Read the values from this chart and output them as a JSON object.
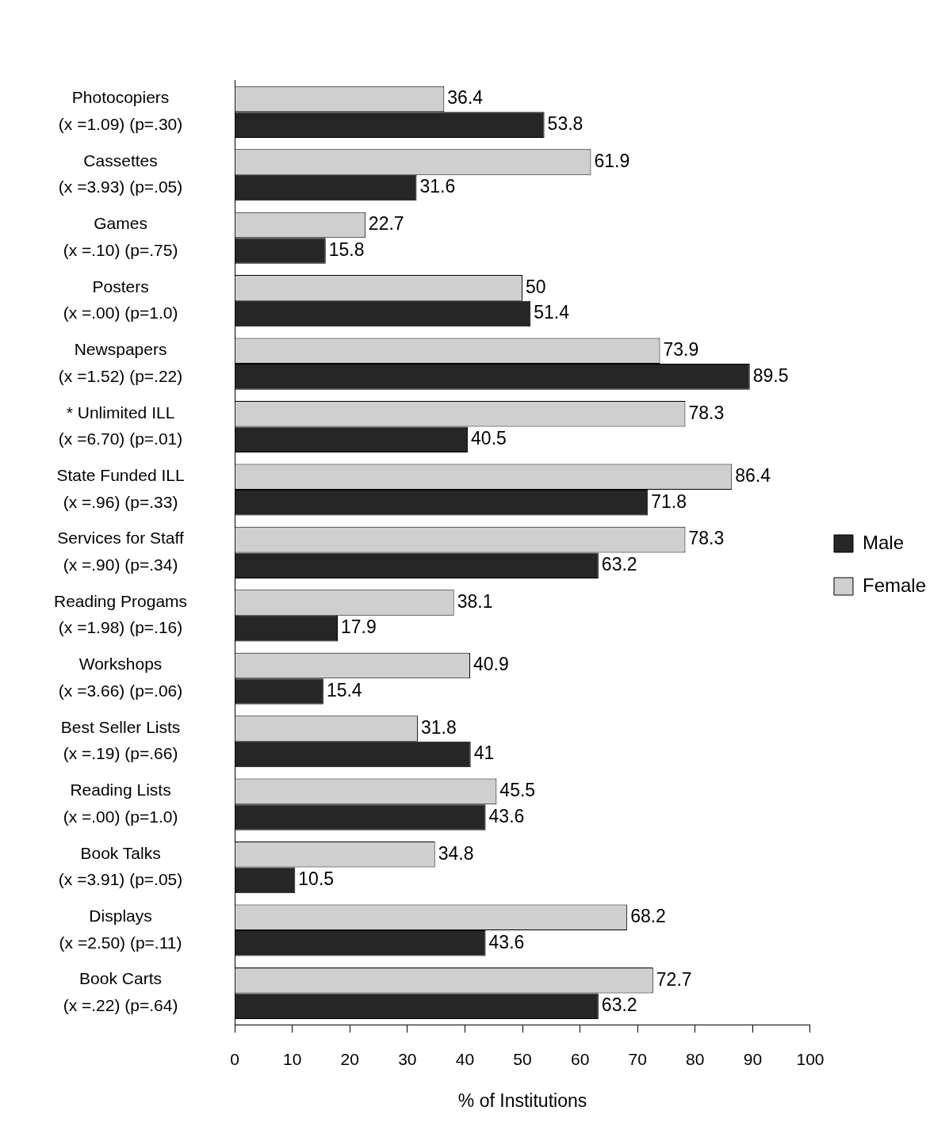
{
  "chart_data": {
    "type": "bar",
    "orientation": "horizontal",
    "xlabel": "% of Institutions",
    "categories": [
      "Photocopiers\n(x =1.09) (p=.30)",
      "Cassettes\n(x =3.93) (p=.05)",
      "Games\n(x =.10) (p=.75)",
      "Posters\n(x =.00) (p=1.0)",
      "Newspapers\n(x =1.52) (p=.22)",
      "* Unlimited ILL\n(x =6.70) (p=.01)",
      "State Funded ILL\n(x =.96) (p=.33)",
      "Services for Staff\n(x =.90) (p=.34)",
      "Reading Progams\n(x =1.98) (p=.16)",
      "Workshops\n(x =3.66) (p=.06)",
      "Best Seller Lists\n(x =.19) (p=.66)",
      "Reading Lists\n(x =.00) (p=1.0)",
      "Book Talks\n(x =3.91) (p=.05)",
      "Displays\n(x =2.50) (p=.11)",
      "Book Carts\n(x =.22) (p=.64)"
    ],
    "series": [
      {
        "name": "Female",
        "color": "#cfcfcf",
        "values": [
          36.4,
          61.9,
          22.7,
          50,
          73.9,
          78.3,
          86.4,
          78.3,
          38.1,
          40.9,
          31.8,
          45.5,
          34.8,
          68.2,
          72.7
        ]
      },
      {
        "name": "Male",
        "color": "#262626",
        "values": [
          53.8,
          31.6,
          15.8,
          51.4,
          89.5,
          40.5,
          71.8,
          63.2,
          17.9,
          15.4,
          41,
          43.6,
          10.5,
          43.6,
          63.2
        ]
      }
    ],
    "xlim": [
      0,
      100
    ],
    "xticks": [
      0,
      10,
      20,
      30,
      40,
      50,
      60,
      70,
      80,
      90,
      100
    ],
    "grid": false,
    "legend": "right",
    "data_labels": true
  }
}
